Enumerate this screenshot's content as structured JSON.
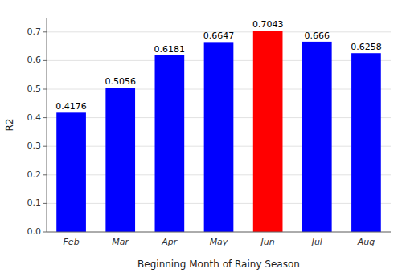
{
  "chart_data": {
    "type": "bar",
    "categories": [
      "Feb",
      "Mar",
      "Apr",
      "May",
      "Jun",
      "Jul",
      "Aug"
    ],
    "values": [
      0.4176,
      0.5056,
      0.6181,
      0.6647,
      0.7043,
      0.666,
      0.6258
    ],
    "colors": [
      "#0000ff",
      "#0000ff",
      "#0000ff",
      "#0000ff",
      "#ff0000",
      "#0000ff",
      "#0000ff"
    ],
    "xlabel": "Beginning Month of Rainy Season",
    "ylabel": "R2",
    "ylim": [
      0.0,
      0.75
    ],
    "yticks": [
      {
        "value": 0.0,
        "label": "0.0"
      },
      0.1,
      0.2,
      0.3,
      0.4,
      0.5,
      0.6,
      0.7
    ],
    "grid": true,
    "data_labels": true
  }
}
